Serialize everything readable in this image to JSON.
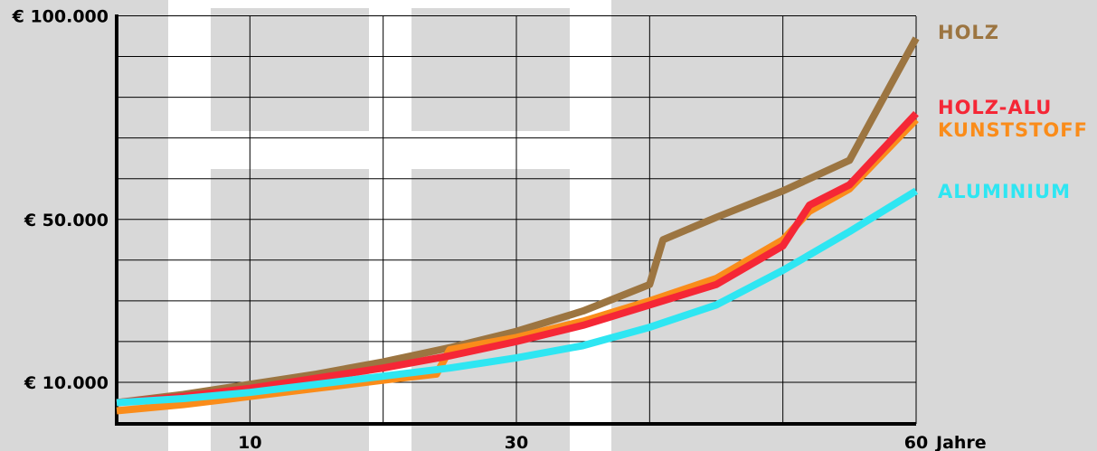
{
  "chart_data": {
    "type": "line",
    "title": "",
    "xlabel": "Jahre",
    "ylabel": "",
    "xlim": [
      0,
      60
    ],
    "ylim": [
      0,
      100000
    ],
    "grid": true,
    "legend_placement": "right",
    "y_ticks": [
      {
        "value": 10000,
        "label": "€ 10.000"
      },
      {
        "value": 50000,
        "label": "€ 50.000"
      },
      {
        "value": 100000,
        "label": "€ 100.000"
      }
    ],
    "x_ticks": [
      {
        "value": 10,
        "label": "10"
      },
      {
        "value": 30,
        "label": "30"
      },
      {
        "value": 60,
        "label": "60"
      }
    ],
    "series": [
      {
        "name": "HOLZ",
        "color": "#9c7541",
        "points": [
          [
            0,
            5000
          ],
          [
            5,
            7000
          ],
          [
            10,
            9500
          ],
          [
            15,
            12000
          ],
          [
            20,
            15000
          ],
          [
            25,
            18500
          ],
          [
            30,
            22500
          ],
          [
            35,
            27500
          ],
          [
            40,
            34000
          ],
          [
            41,
            45000
          ],
          [
            45,
            50500
          ],
          [
            50,
            57000
          ],
          [
            55,
            64500
          ],
          [
            60,
            94500
          ]
        ]
      },
      {
        "name": "HOLZ-ALU",
        "color": "#f52736",
        "points": [
          [
            0,
            5000
          ],
          [
            5,
            6500
          ],
          [
            10,
            8500
          ],
          [
            15,
            11000
          ],
          [
            20,
            13500
          ],
          [
            25,
            16500
          ],
          [
            30,
            20000
          ],
          [
            35,
            24000
          ],
          [
            40,
            29000
          ],
          [
            45,
            34000
          ],
          [
            50,
            43500
          ],
          [
            52,
            53500
          ],
          [
            55,
            58500
          ],
          [
            60,
            76000
          ]
        ]
      },
      {
        "name": "KUNSTSTOFF",
        "color": "#fa8c1a",
        "points": [
          [
            0,
            3000
          ],
          [
            5,
            4500
          ],
          [
            10,
            6500
          ],
          [
            15,
            8500
          ],
          [
            20,
            10500
          ],
          [
            24,
            12000
          ],
          [
            25,
            18000
          ],
          [
            30,
            21000
          ],
          [
            35,
            25000
          ],
          [
            40,
            30000
          ],
          [
            45,
            35500
          ],
          [
            50,
            45000
          ],
          [
            52,
            52000
          ],
          [
            55,
            57500
          ],
          [
            60,
            74500
          ]
        ]
      },
      {
        "name": "ALUMINIUM",
        "color": "#2ee6f2",
        "points": [
          [
            0,
            5000
          ],
          [
            5,
            6000
          ],
          [
            10,
            7500
          ],
          [
            15,
            9500
          ],
          [
            20,
            11500
          ],
          [
            25,
            13500
          ],
          [
            30,
            16000
          ],
          [
            35,
            19000
          ],
          [
            40,
            23500
          ],
          [
            45,
            29000
          ],
          [
            50,
            37500
          ],
          [
            55,
            47000
          ],
          [
            60,
            57000
          ]
        ]
      }
    ]
  }
}
